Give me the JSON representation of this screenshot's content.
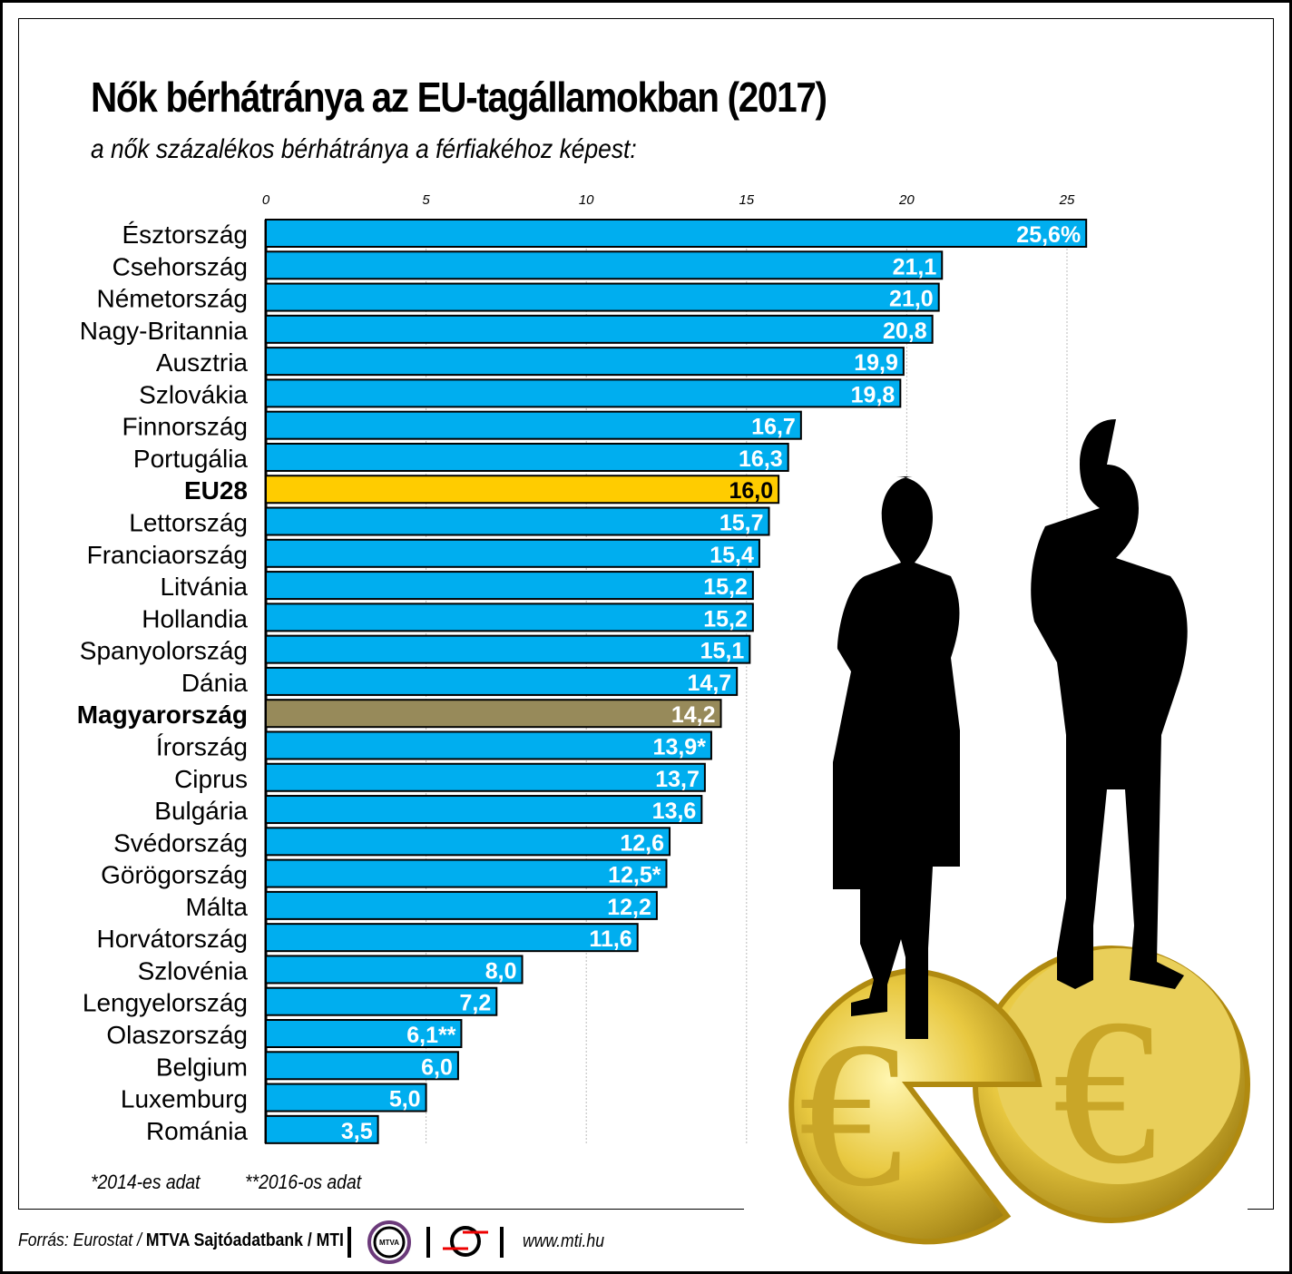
{
  "title": "Nők bérhátránya az EU-tagállamokban (2017)",
  "subtitle": "a nők százalékos bérhátránya a férfiakéhoz képest:",
  "footnotes": [
    "*2014-es adat",
    "**2016-os adat"
  ],
  "source": {
    "prefix": "Forrás: Eurostat / ",
    "bold": "MTVA Sajtóadatbank / MTI",
    "logo1": "MTVA",
    "url": "www.mti.hu"
  },
  "colors": {
    "bar": "#00aeef",
    "eu": "#ffcc00",
    "hungary": "#978a5a",
    "coin": "#e8c840"
  },
  "chart_data": {
    "type": "bar",
    "orientation": "horizontal",
    "xlim": [
      0,
      25.6
    ],
    "xticks": [
      0,
      5,
      10,
      15,
      20,
      25
    ],
    "grid": true,
    "categories": [
      "Észtország",
      "Csehország",
      "Németország",
      "Nagy-Britannia",
      "Ausztria",
      "Szlovákia",
      "Finnország",
      "Portugália",
      "EU28",
      "Lettország",
      "Franciaország",
      "Litvánia",
      "Hollandia",
      "Spanyolország",
      "Dánia",
      "Magyarország",
      "Írország",
      "Ciprus",
      "Bulgária",
      "Svédország",
      "Görögország",
      "Málta",
      "Horvátország",
      "Szlovénia",
      "Lengyelország",
      "Olaszország",
      "Belgium",
      "Luxemburg",
      "Románia"
    ],
    "values": [
      25.6,
      21.1,
      21.0,
      20.8,
      19.9,
      19.8,
      16.7,
      16.3,
      16.0,
      15.7,
      15.4,
      15.2,
      15.2,
      15.1,
      14.7,
      14.2,
      13.9,
      13.7,
      13.6,
      12.6,
      12.5,
      12.2,
      11.6,
      8.0,
      7.2,
      6.1,
      6.0,
      5.0,
      3.5
    ],
    "labels": [
      "25,6%",
      "21,1",
      "21,0",
      "20,8",
      "19,9",
      "19,8",
      "16,7",
      "16,3",
      "16,0",
      "15,7",
      "15,4",
      "15,2",
      "15,2",
      "15,1",
      "14,7",
      "14,2",
      "13,9*",
      "13,7",
      "13,6",
      "12,6",
      "12,5*",
      "12,2",
      "11,6",
      "8,0",
      "7,2",
      "6,1**",
      "6,0",
      "5,0",
      "3,5"
    ],
    "highlight": {
      "EU28": "eu",
      "Magyarország": "hungary"
    }
  }
}
